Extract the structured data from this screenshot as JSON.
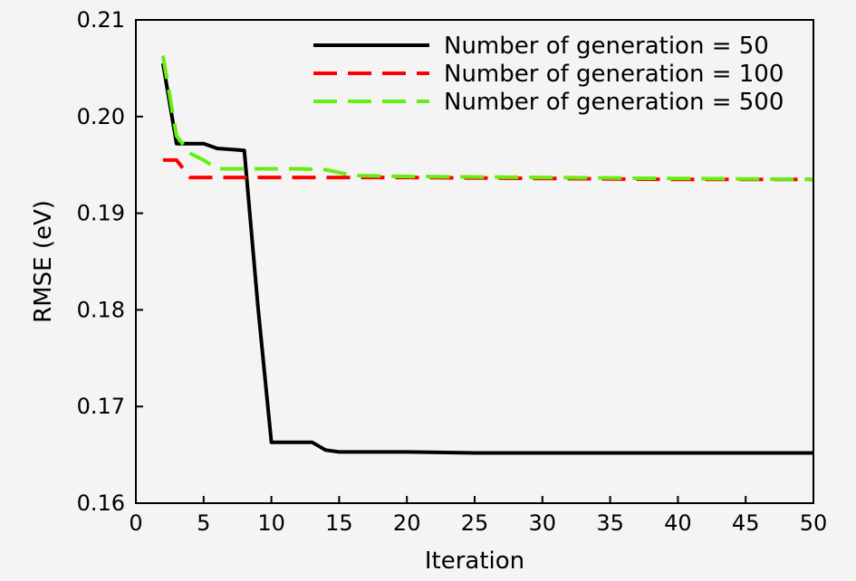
{
  "chart_data": {
    "type": "line",
    "xlabel": "Iteration",
    "ylabel": "RMSE (eV)",
    "xlim": [
      0,
      50
    ],
    "ylim": [
      0.16,
      0.21
    ],
    "xticks": [
      0,
      5,
      10,
      15,
      20,
      25,
      30,
      35,
      40,
      45,
      50
    ],
    "yticks": [
      0.16,
      0.17,
      0.18,
      0.19,
      0.2,
      0.21
    ],
    "ytick_labels": [
      "0.16",
      "0.17",
      "0.18",
      "0.19",
      "0.20",
      "0.21"
    ],
    "grid": false,
    "legend_position": "top-right",
    "series": [
      {
        "name": "Number of generation = 50",
        "color": "#000000",
        "style": "solid",
        "x": [
          2,
          3,
          5,
          6,
          8,
          9,
          10,
          11,
          13,
          14,
          15,
          20,
          25,
          30,
          40,
          50
        ],
        "y": [
          0.2055,
          0.1972,
          0.1972,
          0.1967,
          0.1965,
          0.1805,
          0.1663,
          0.1663,
          0.1663,
          0.1655,
          0.1653,
          0.1653,
          0.1652,
          0.1652,
          0.1652,
          0.1652
        ]
      },
      {
        "name": "Number of generation = 100",
        "color": "#ff0000",
        "style": "dashed",
        "x": [
          2,
          3,
          4,
          5,
          10,
          20,
          30,
          40,
          50
        ],
        "y": [
          0.1955,
          0.1955,
          0.1937,
          0.1937,
          0.1937,
          0.1937,
          0.1936,
          0.1935,
          0.1935
        ]
      },
      {
        "name": "Number of generation = 500",
        "color": "#66ee11",
        "style": "dashed",
        "x": [
          2,
          3,
          4,
          5,
          6,
          8,
          10,
          12,
          14,
          15,
          16,
          20,
          30,
          40,
          50
        ],
        "y": [
          0.2063,
          0.198,
          0.1962,
          0.1955,
          0.1946,
          0.1946,
          0.1946,
          0.1946,
          0.1945,
          0.1942,
          0.1939,
          0.1938,
          0.1937,
          0.1936,
          0.1935
        ]
      }
    ]
  }
}
